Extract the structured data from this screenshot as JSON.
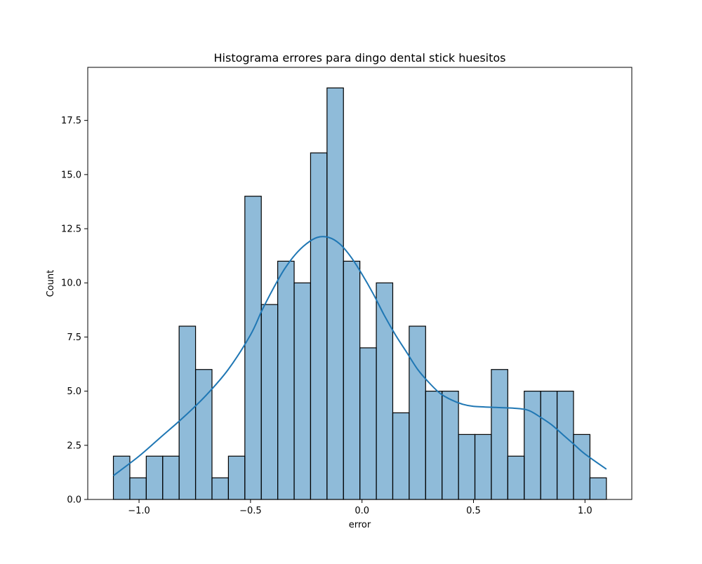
{
  "chart_data": {
    "type": "bar",
    "title": "Histograma errores para dingo dental stick huesitos",
    "xlabel": "error",
    "ylabel": "Count",
    "xlim": [
      -1.23,
      1.21
    ],
    "ylim": [
      0,
      19.95
    ],
    "bin_edges": [
      -1.115,
      -1.0413,
      -0.9676,
      -0.8939,
      -0.8202,
      -0.7465,
      -0.6728,
      -0.5991,
      -0.5254,
      -0.4517,
      -0.378,
      -0.3043,
      -0.2306,
      -0.1569,
      -0.0832,
      -0.0095,
      0.0642,
      0.1379,
      0.2116,
      0.2853,
      0.359,
      0.4327,
      0.5064,
      0.5801,
      0.6538,
      0.7275,
      0.8012,
      0.8749,
      0.9486,
      1.0223,
      1.096
    ],
    "counts": [
      2,
      1,
      2,
      2,
      8,
      6,
      1,
      2,
      14,
      9,
      11,
      10,
      16,
      19,
      11,
      7,
      10,
      4,
      8,
      5,
      5,
      3,
      3,
      6,
      2,
      5,
      5,
      5,
      3,
      1
    ],
    "x_ticks": [
      -1.0,
      -0.5,
      0.0,
      0.5,
      1.0
    ],
    "x_tick_labels": [
      "−1.0",
      "−0.5",
      "0.0",
      "0.5",
      "1.0"
    ],
    "y_ticks": [
      0,
      2.5,
      5,
      7.5,
      10,
      12.5,
      15,
      17.5
    ],
    "y_tick_labels": [
      "0.0",
      "2.5",
      "5.0",
      "7.5",
      "10.0",
      "12.5",
      "15.0",
      "17.5"
    ],
    "kde": {
      "x": [
        -1.115,
        -1.0,
        -0.9,
        -0.8,
        -0.7,
        -0.6,
        -0.5,
        -0.45,
        -0.4,
        -0.35,
        -0.3,
        -0.25,
        -0.2,
        -0.15,
        -0.1,
        -0.05,
        0.0,
        0.05,
        0.1,
        0.15,
        0.2,
        0.25,
        0.3,
        0.35,
        0.4,
        0.45,
        0.5,
        0.6,
        0.7,
        0.75,
        0.8,
        0.85,
        0.9,
        0.95,
        1.0,
        1.096
      ],
      "y": [
        1.1,
        2.0,
        2.9,
        3.8,
        4.8,
        6.0,
        7.6,
        8.7,
        9.7,
        10.6,
        11.3,
        11.8,
        12.1,
        12.1,
        11.8,
        11.2,
        10.4,
        9.5,
        8.5,
        7.6,
        6.8,
        6.0,
        5.4,
        4.9,
        4.6,
        4.4,
        4.3,
        4.25,
        4.2,
        4.1,
        3.8,
        3.45,
        3.0,
        2.55,
        2.1,
        1.4
      ]
    },
    "colors": {
      "bar_fill": "#1f77b4",
      "bar_fill_opacity": 0.5,
      "bar_edge": "#000000",
      "kde_line": "#1f77b4"
    },
    "grid": false,
    "legend": "none"
  }
}
